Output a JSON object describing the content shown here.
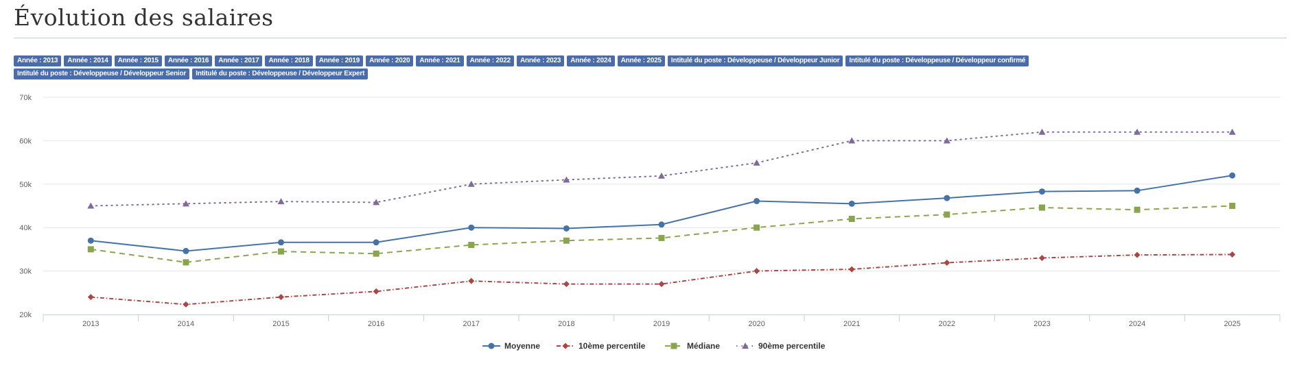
{
  "page": {
    "title": "Évolution des salaires",
    "filters": [
      "Année : 2013",
      "Année : 2014",
      "Année : 2015",
      "Année : 2016",
      "Année : 2017",
      "Année : 2018",
      "Année : 2019",
      "Année : 2020",
      "Année : 2021",
      "Année : 2022",
      "Année : 2023",
      "Année : 2024",
      "Année : 2025",
      "Intitulé du poste : Développeuse / Développeur Junior",
      "Intitulé du poste : Développeuse / Développeur confirmé",
      "Intitulé du poste : Développeuse / Développeur Senior",
      "Intitulé du poste : Développeuse / Développeur Expert"
    ],
    "tag_color": "#4a6cad"
  },
  "chart_data": {
    "type": "line",
    "title": "",
    "xlabel": "",
    "ylabel": "",
    "categories": [
      "2013",
      "2014",
      "2015",
      "2016",
      "2017",
      "2018",
      "2019",
      "2020",
      "2021",
      "2022",
      "2023",
      "2024",
      "2025"
    ],
    "ylim": [
      20000,
      70000
    ],
    "yticks": [
      20000,
      30000,
      40000,
      50000,
      60000,
      70000
    ],
    "ytick_labels": [
      "20k",
      "30k",
      "40k",
      "50k",
      "60k",
      "70k"
    ],
    "grid": true,
    "legend": "bottom",
    "series": [
      {
        "name": "Moyenne",
        "color": "#4572a7",
        "dash": "solid",
        "marker": "circle",
        "values": [
          37000,
          34600,
          36600,
          36600,
          40000,
          39800,
          40700,
          46100,
          45500,
          46800,
          48300,
          48500,
          52000
        ]
      },
      {
        "name": "10ème percentile",
        "color": "#aa4643",
        "dash": "dashdot",
        "marker": "diamond",
        "values": [
          24000,
          22300,
          24000,
          25300,
          27700,
          27000,
          27000,
          30000,
          30400,
          31900,
          33000,
          33700,
          33800
        ]
      },
      {
        "name": "Médiane",
        "color": "#89a54e",
        "dash": "dash",
        "marker": "square",
        "values": [
          35000,
          32000,
          34500,
          34000,
          36000,
          37000,
          37600,
          40000,
          42000,
          43000,
          44600,
          44100,
          45000
        ]
      },
      {
        "name": "90ème percentile",
        "color": "#80699b",
        "dash": "dot",
        "marker": "triangle",
        "values": [
          45000,
          45500,
          46000,
          45800,
          50000,
          51000,
          51900,
          54900,
          60000,
          60000,
          62000,
          62000,
          62000
        ]
      }
    ]
  }
}
